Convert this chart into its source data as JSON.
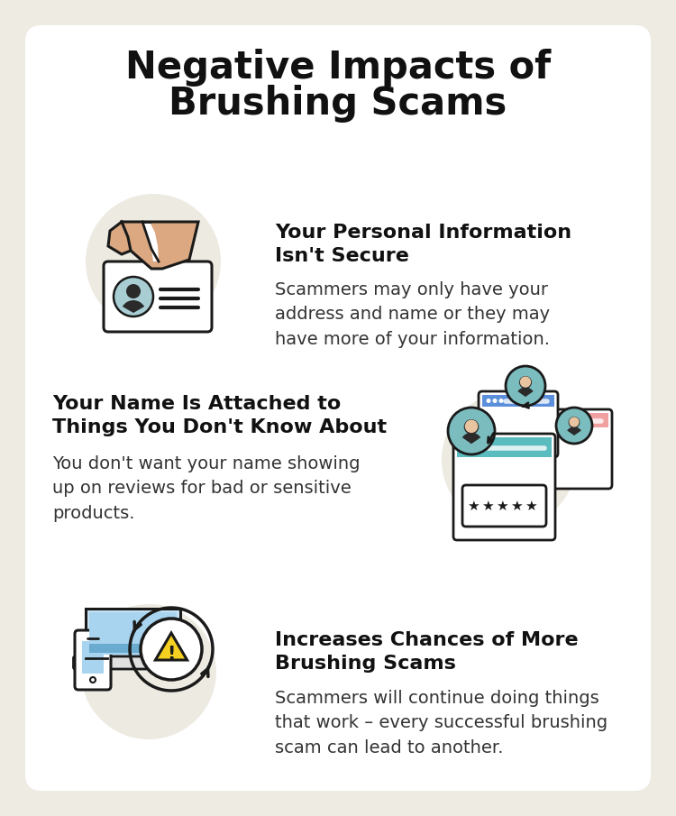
{
  "bg_outer": "#eeebe3",
  "bg_card": "#ffffff",
  "title_line1": "Negative Impacts of",
  "title_line2": "Brushing Scams",
  "title_fontsize": 30,
  "title_color": "#111111",
  "items": [
    {
      "heading": "Your Personal Information\nIsn't Secure",
      "body": "Scammers may only have your\naddress and name or they may\nhave more of your information.",
      "icon_side": "left"
    },
    {
      "heading": "Your Name Is Attached to\nThings You Don't Know About",
      "body": "You don't want your name showing\nup on reviews for bad or sensitive\nproducts.",
      "icon_side": "right"
    },
    {
      "heading": "Increases Chances of More\nBrushing Scams",
      "body": "Scammers will continue doing things\nthat work – every successful brushing\nscam can lead to another.",
      "icon_side": "left"
    }
  ],
  "heading_fontsize": 16,
  "body_fontsize": 14,
  "heading_color": "#111111",
  "body_color": "#333333",
  "icon_bg": "#edeae2",
  "skin_color": "#dba882",
  "skin_light": "#e8c4a0",
  "teal_color": "#5bbcbf",
  "blue_color": "#5b8fdb",
  "pink_color": "#f0a0a0",
  "light_blue": "#a8d4e8",
  "avatar_bg": "#7bbcbf",
  "star_color": "#1a1a1a",
  "warn_yellow": "#f5d020",
  "line_color": "#1a1a1a"
}
